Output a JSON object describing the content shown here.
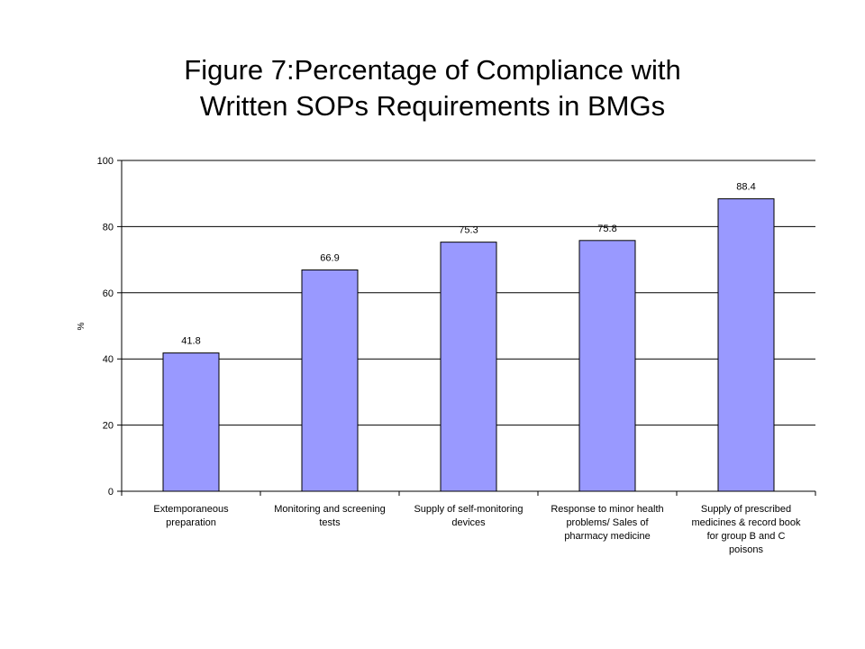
{
  "chart_data": {
    "type": "bar",
    "title": "Figure 7:Percentage of Compliance with\nWritten SOPs Requirements in BMGs",
    "xlabel": "",
    "ylabel": "%",
    "ylim": [
      0,
      100
    ],
    "yticks": [
      0,
      20,
      40,
      60,
      80,
      100
    ],
    "grid": true,
    "legend": "none",
    "bar_color": "#9999ff",
    "categories": [
      [
        "Extemporaneous",
        "preparation"
      ],
      [
        "Monitoring and screening",
        "tests"
      ],
      [
        "Supply of self-monitoring",
        "devices"
      ],
      [
        "Response to minor health",
        "problems/ Sales of",
        "pharmacy medicine"
      ],
      [
        "Supply of prescribed",
        "medicines & record book",
        "for group B and C",
        "poisons"
      ]
    ],
    "values": [
      41.8,
      66.9,
      75.3,
      75.8,
      88.4
    ],
    "data_labels": [
      "41.8",
      "66.9",
      "75.3",
      "75.8",
      "88.4"
    ]
  }
}
